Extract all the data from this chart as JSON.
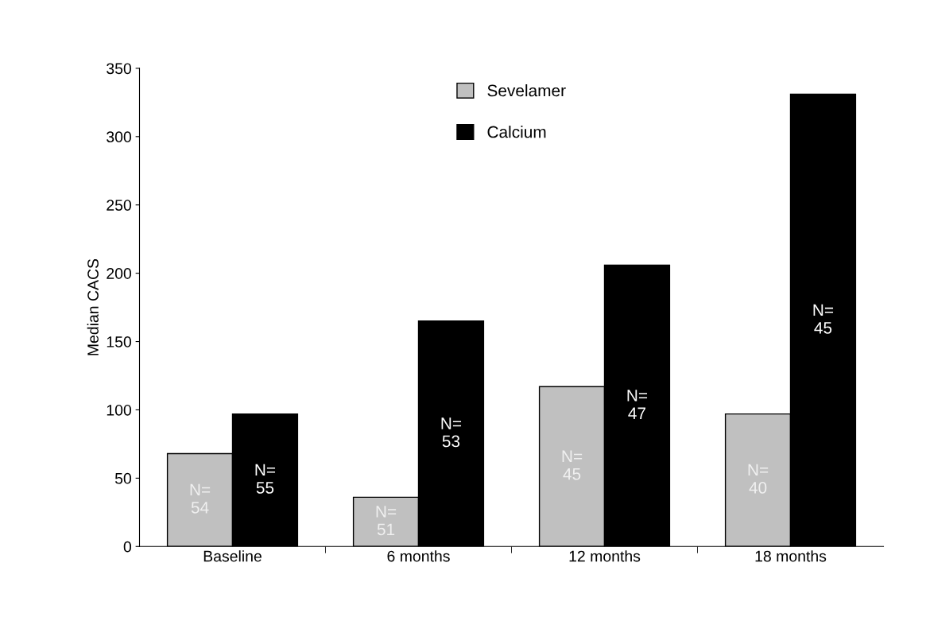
{
  "chart_data": {
    "type": "bar",
    "ylabel": "Median CACS",
    "categories": [
      "Baseline",
      "6 months",
      "12 months",
      "18 months"
    ],
    "series": [
      {
        "name": "Sevelamer",
        "color": "#c0c0c0",
        "values": [
          68,
          36,
          117,
          97
        ]
      },
      {
        "name": "Calcium",
        "color": "#000000",
        "values": [
          97,
          165,
          206,
          331
        ]
      }
    ],
    "annotations": [
      "N=\n54",
      "N=\n55",
      "N=\n51",
      "N=\n53",
      "N=\n45",
      "N=\n47",
      "N=\n40",
      "N=\n45"
    ],
    "ylim": [
      0,
      350
    ],
    "yticks": [
      0,
      50,
      100,
      150,
      200,
      250,
      300,
      350
    ],
    "grid": false,
    "legend": "top"
  }
}
